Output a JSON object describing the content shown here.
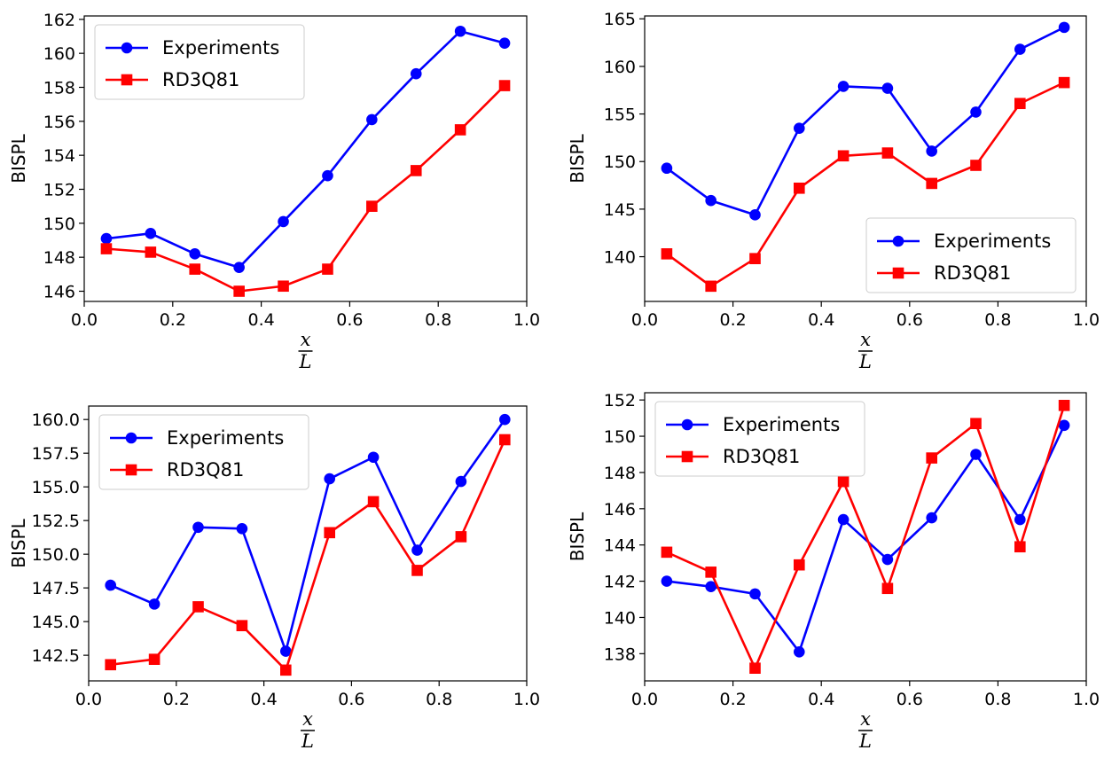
{
  "chart_data": [
    {
      "type": "line",
      "xlabel_numerator": "x",
      "xlabel_denominator": "L",
      "ylabel": "BISPL",
      "xlim": [
        0.0,
        1.0
      ],
      "ylim": [
        145.4,
        162.2
      ],
      "xticks": [
        "0.0",
        "0.2",
        "0.4",
        "0.6",
        "0.8",
        "1.0"
      ],
      "yticks": [
        "146",
        "148",
        "150",
        "152",
        "154",
        "156",
        "158",
        "160",
        "162"
      ],
      "x": [
        0.05,
        0.15,
        0.25,
        0.35,
        0.45,
        0.55,
        0.65,
        0.75,
        0.85,
        0.95
      ],
      "legend_position": "upper-left",
      "series": [
        {
          "name": "Experiments",
          "color": "#0000ff",
          "marker": "circle",
          "values": [
            149.1,
            149.4,
            148.2,
            147.4,
            150.1,
            152.8,
            156.1,
            158.8,
            161.3,
            160.6
          ]
        },
        {
          "name": "RD3Q81",
          "color": "#ff0000",
          "marker": "square",
          "values": [
            148.5,
            148.3,
            147.3,
            146.0,
            146.3,
            147.3,
            151.0,
            153.1,
            155.5,
            158.1
          ]
        }
      ]
    },
    {
      "type": "line",
      "xlabel_numerator": "x",
      "xlabel_denominator": "L",
      "ylabel": "BISPL",
      "xlim": [
        0.0,
        1.0
      ],
      "ylim": [
        135.3,
        165.3
      ],
      "xticks": [
        "0.0",
        "0.2",
        "0.4",
        "0.6",
        "0.8",
        "1.0"
      ],
      "yticks": [
        "140",
        "145",
        "150",
        "155",
        "160",
        "165"
      ],
      "x": [
        0.05,
        0.15,
        0.25,
        0.35,
        0.45,
        0.55,
        0.65,
        0.75,
        0.85,
        0.95
      ],
      "legend_position": "lower-right",
      "series": [
        {
          "name": "Experiments",
          "color": "#0000ff",
          "marker": "circle",
          "values": [
            149.3,
            145.9,
            144.4,
            153.5,
            157.9,
            157.7,
            151.1,
            155.2,
            161.8,
            164.1
          ]
        },
        {
          "name": "RD3Q81",
          "color": "#ff0000",
          "marker": "square",
          "values": [
            140.3,
            136.9,
            139.8,
            147.2,
            150.6,
            150.9,
            147.7,
            149.6,
            156.1,
            158.3
          ]
        }
      ]
    },
    {
      "type": "line",
      "xlabel_numerator": "x",
      "xlabel_denominator": "L",
      "ylabel": "BISPL",
      "xlim": [
        0.0,
        1.0
      ],
      "ylim": [
        140.6,
        161.0
      ],
      "xticks": [
        "0.0",
        "0.2",
        "0.4",
        "0.6",
        "0.8",
        "1.0"
      ],
      "yticks": [
        "142.5",
        "145.0",
        "147.5",
        "150.0",
        "152.5",
        "155.0",
        "157.5",
        "160.0"
      ],
      "x": [
        0.05,
        0.15,
        0.25,
        0.35,
        0.45,
        0.55,
        0.65,
        0.75,
        0.85,
        0.95
      ],
      "legend_position": "upper-left",
      "series": [
        {
          "name": "Experiments",
          "color": "#0000ff",
          "marker": "circle",
          "values": [
            147.7,
            146.3,
            152.0,
            151.9,
            142.8,
            155.6,
            157.2,
            150.3,
            155.4,
            160.0
          ]
        },
        {
          "name": "RD3Q81",
          "color": "#ff0000",
          "marker": "square",
          "values": [
            141.8,
            142.2,
            146.1,
            144.7,
            141.4,
            151.6,
            153.9,
            148.8,
            151.3,
            158.5
          ]
        }
      ]
    },
    {
      "type": "line",
      "xlabel_numerator": "x",
      "xlabel_denominator": "L",
      "ylabel": "BISPL",
      "xlim": [
        0.0,
        1.0
      ],
      "ylim": [
        136.5,
        152.4
      ],
      "xticks": [
        "0.0",
        "0.2",
        "0.4",
        "0.6",
        "0.8",
        "1.0"
      ],
      "yticks": [
        "138",
        "140",
        "142",
        "144",
        "146",
        "148",
        "150",
        "152"
      ],
      "x": [
        0.05,
        0.15,
        0.25,
        0.35,
        0.45,
        0.55,
        0.65,
        0.75,
        0.85,
        0.95
      ],
      "legend_position": "upper-left",
      "series": [
        {
          "name": "Experiments",
          "color": "#0000ff",
          "marker": "circle",
          "values": [
            142.0,
            141.7,
            141.3,
            138.1,
            145.4,
            143.2,
            145.5,
            149.0,
            145.4,
            150.6
          ]
        },
        {
          "name": "RD3Q81",
          "color": "#ff0000",
          "marker": "square",
          "values": [
            143.6,
            142.5,
            137.2,
            142.9,
            147.5,
            141.6,
            148.8,
            150.7,
            143.9,
            151.7
          ]
        }
      ]
    }
  ]
}
